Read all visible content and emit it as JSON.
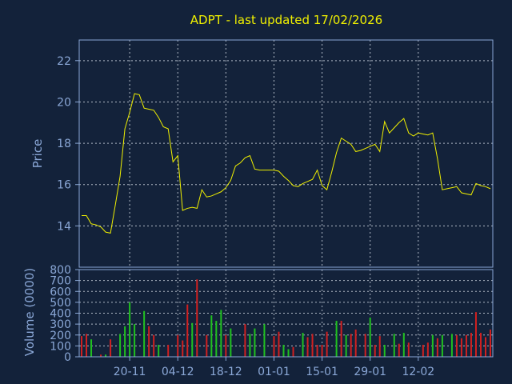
{
  "chart_data": {
    "title": "ADPT - last updated 17/02/2026",
    "price_panel": {
      "type": "line",
      "ylabel": "Price",
      "ylim": [
        12.0,
        23.0
      ],
      "yticks": [
        14,
        16,
        18,
        20,
        22
      ],
      "series_color": "#f0f000",
      "values": [
        14.5,
        14.5,
        14.1,
        14.05,
        13.95,
        13.7,
        13.65,
        15.0,
        16.4,
        18.7,
        19.5,
        20.4,
        20.35,
        19.7,
        19.65,
        19.6,
        19.25,
        18.8,
        18.7,
        17.1,
        17.4,
        14.75,
        14.85,
        14.9,
        14.85,
        15.75,
        15.4,
        15.45,
        15.55,
        15.65,
        15.85,
        16.2,
        16.9,
        17.05,
        17.3,
        17.4,
        16.75,
        16.7,
        16.7,
        16.7,
        16.7,
        16.65,
        16.4,
        16.2,
        15.95,
        15.9,
        16.05,
        16.15,
        16.25,
        16.7,
        15.95,
        15.75,
        16.6,
        17.55,
        18.25,
        18.1,
        17.95,
        17.6,
        17.65,
        17.75,
        17.85,
        17.95,
        17.6,
        19.05,
        18.5,
        18.75,
        19.0,
        19.2,
        18.5,
        18.35,
        18.5,
        18.45,
        18.4,
        18.5,
        17.25,
        15.75,
        15.8,
        15.85,
        15.9,
        15.6,
        15.55,
        15.5,
        16.05,
        15.95,
        15.9,
        15.8
      ]
    },
    "volume_panel": {
      "type": "bar",
      "ylabel": "Volume (0000)",
      "ylim": [
        0,
        800
      ],
      "yticks": [
        0,
        100,
        200,
        300,
        400,
        500,
        600,
        700,
        800
      ],
      "up_color": "#20c020",
      "down_color": "#d02020",
      "values": [
        190,
        210,
        160,
        0,
        20,
        20,
        160,
        0,
        210,
        280,
        500,
        300,
        0,
        420,
        280,
        200,
        110,
        0,
        110,
        0,
        200,
        150,
        480,
        310,
        710,
        0,
        200,
        380,
        330,
        430,
        200,
        260,
        0,
        0,
        300,
        210,
        260,
        0,
        300,
        0,
        190,
        230,
        110,
        70,
        90,
        0,
        220,
        180,
        210,
        110,
        110,
        230,
        0,
        330,
        330,
        200,
        210,
        250,
        0,
        210,
        360,
        110,
        190,
        110,
        0,
        210,
        120,
        220,
        130,
        0,
        0,
        110,
        130,
        200,
        170,
        200,
        0,
        210,
        200,
        170,
        200,
        220,
        410,
        220,
        180,
        250
      ],
      "directions": [
        "d",
        "d",
        "u",
        "u",
        "d",
        "u",
        "d",
        "u",
        "u",
        "u",
        "u",
        "u",
        "u",
        "u",
        "d",
        "d",
        "u",
        "d",
        "d",
        "u",
        "d",
        "d",
        "d",
        "u",
        "d",
        "u",
        "d",
        "u",
        "u",
        "u",
        "d",
        "u",
        "u",
        "d",
        "d",
        "u",
        "u",
        "u",
        "u",
        "u",
        "d",
        "d",
        "u",
        "u",
        "d",
        "d",
        "u",
        "d",
        "d",
        "d",
        "d",
        "d",
        "u",
        "u",
        "d",
        "u",
        "d",
        "d",
        "u",
        "d",
        "u",
        "d",
        "d",
        "u",
        "u",
        "u",
        "d",
        "u",
        "d",
        "u",
        "u",
        "d",
        "d",
        "u",
        "d",
        "u",
        "u",
        "u",
        "d",
        "d",
        "d",
        "d",
        "d",
        "d",
        "d",
        "d"
      ]
    },
    "x_tick_labels": [
      "20-11",
      "04-12",
      "18-12",
      "01-01",
      "15-01",
      "29-01",
      "12-02"
    ],
    "x_tick_index": [
      10,
      20,
      30,
      40,
      50,
      60,
      70
    ],
    "grid": true
  }
}
